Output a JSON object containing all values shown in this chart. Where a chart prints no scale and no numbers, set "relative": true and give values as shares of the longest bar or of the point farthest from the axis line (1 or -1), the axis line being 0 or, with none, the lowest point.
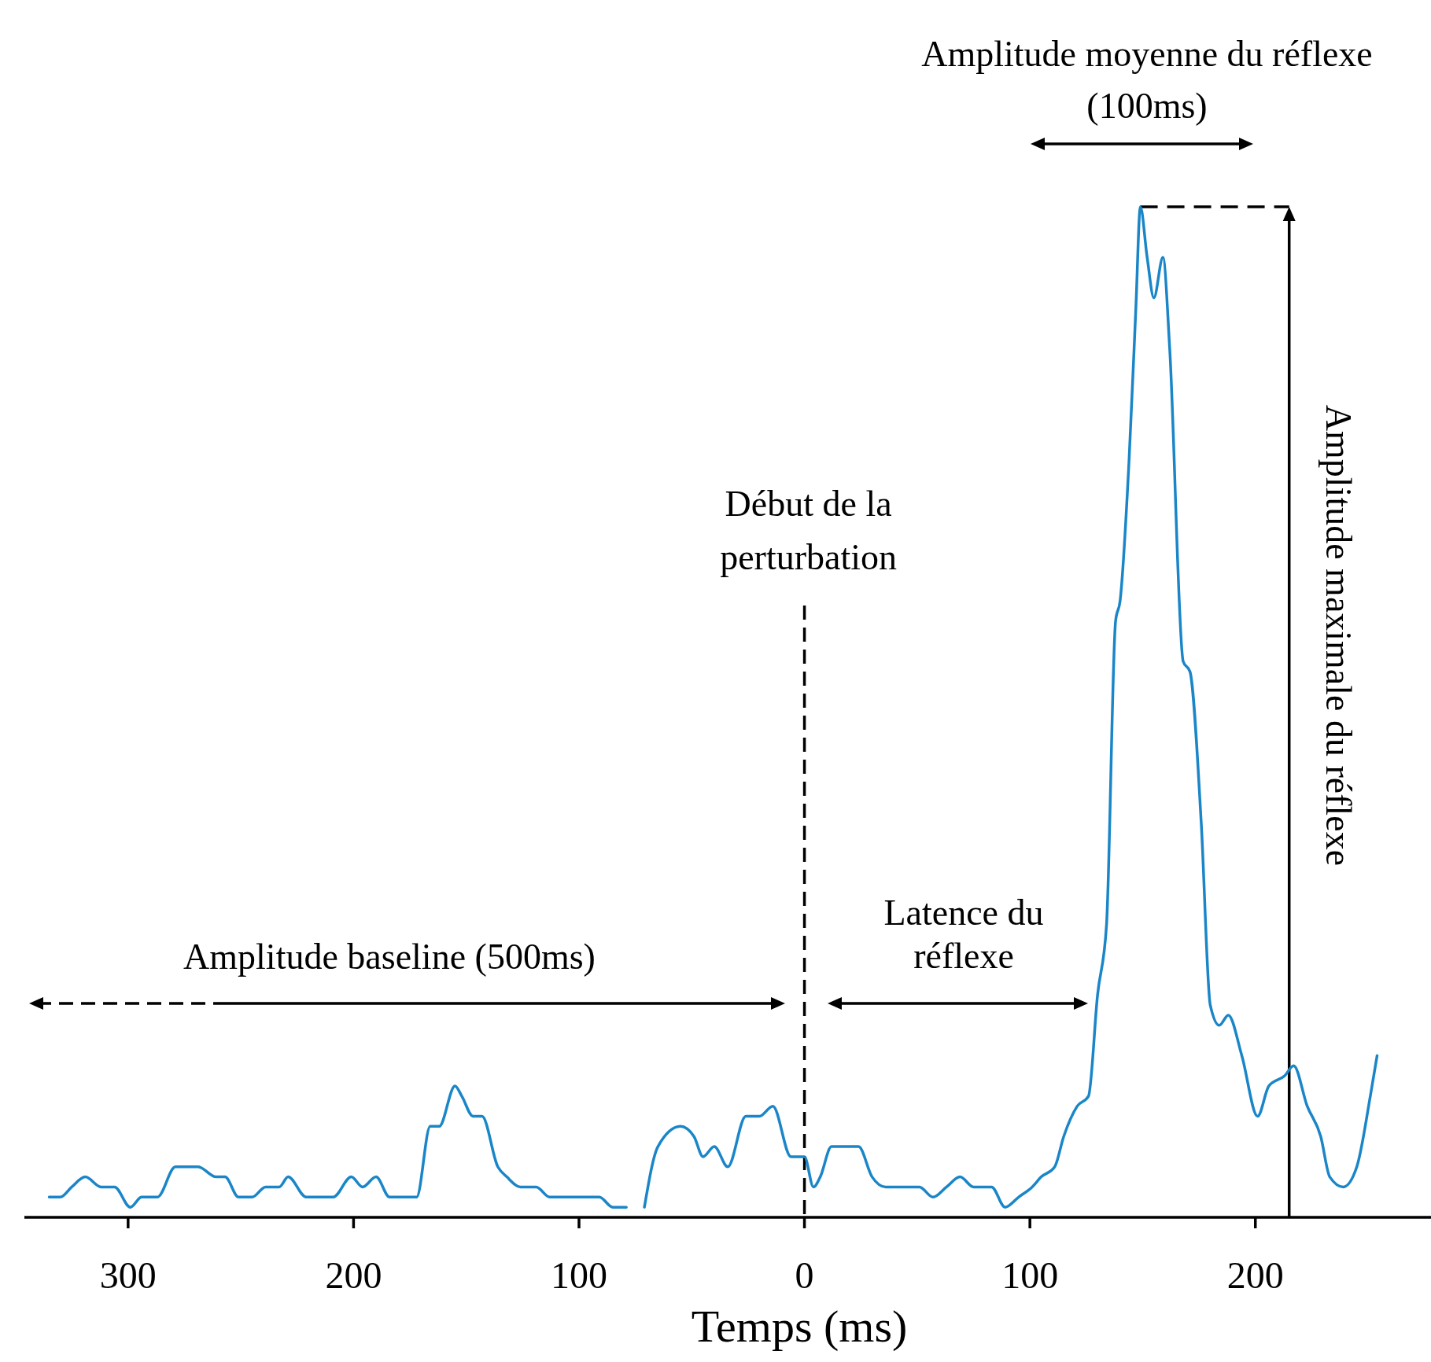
{
  "chart_data": {
    "type": "line",
    "relative": true,
    "xlabel": "Temps (ms)",
    "xlim": [
      -346,
      280
    ],
    "xticks": [
      {
        "value": -300,
        "label": "300"
      },
      {
        "value": -200,
        "label": "200"
      },
      {
        "value": -100,
        "label": "100"
      },
      0,
      100,
      200
    ],
    "grid": false,
    "marker": "none",
    "line_style": "solid",
    "x": [
      -335,
      -330,
      -325,
      -319,
      -312,
      -306,
      -299,
      -294,
      -287,
      -279,
      -273,
      -269,
      -261,
      -257,
      -251,
      -245,
      -239,
      -233,
      -229,
      -221,
      -215,
      -209,
      -201,
      -196,
      -190,
      -184,
      -176,
      -172,
      -166,
      -162,
      -155,
      -152,
      -147,
      -143,
      -136,
      -132,
      -126,
      -119,
      -113,
      -107,
      -99,
      -91,
      -85,
      -79,
      -75,
      -71,
      -65,
      -55,
      -49,
      -45,
      -40,
      -34,
      -26,
      -20,
      -14,
      -6,
      0,
      4,
      7,
      12,
      18,
      24,
      30,
      36,
      51,
      57,
      63,
      69,
      75,
      83,
      89,
      95,
      101,
      105,
      111,
      115,
      121,
      126,
      130,
      134,
      138,
      140,
      144,
      147,
      149,
      152,
      155,
      159,
      162,
      168,
      171,
      176,
      180,
      184,
      188,
      194,
      201,
      206,
      213,
      217,
      223,
      229,
      233,
      239,
      245,
      251,
      254
    ],
    "series": [
      {
        "color": "#1a86c8",
        "values": [
          0.02,
          0.02,
          0.03,
          0.04,
          0.03,
          0.03,
          0.01,
          0.02,
          0.02,
          0.05,
          0.05,
          0.05,
          0.04,
          0.04,
          0.02,
          0.02,
          0.03,
          0.03,
          0.04,
          0.02,
          0.02,
          0.02,
          0.04,
          0.03,
          0.04,
          0.02,
          0.02,
          0.02,
          0.09,
          0.09,
          0.13,
          0.12,
          0.1,
          0.1,
          0.05,
          0.04,
          0.03,
          0.03,
          0.02,
          0.02,
          0.02,
          0.02,
          0.01,
          0.01,
          null,
          0.01,
          0.07,
          0.09,
          0.08,
          0.06,
          0.07,
          0.05,
          0.1,
          0.1,
          0.11,
          0.06,
          0.06,
          0.03,
          0.04,
          0.07,
          0.07,
          0.07,
          0.04,
          0.03,
          0.03,
          0.02,
          0.03,
          0.04,
          0.03,
          0.03,
          0.01,
          0.02,
          0.03,
          0.04,
          0.05,
          0.08,
          0.11,
          0.12,
          0.22,
          0.29,
          0.59,
          0.61,
          0.75,
          0.9,
          1,
          0.95,
          0.91,
          0.95,
          0.86,
          0.55,
          0.54,
          0.39,
          0.21,
          0.19,
          0.2,
          0.16,
          0.1,
          0.13,
          0.14,
          0.15,
          0.11,
          0.08,
          0.04,
          0.03,
          0.05,
          0.12,
          0.16
        ]
      }
    ],
    "ref_lines": [
      {
        "axis": "x",
        "value": 0,
        "label": "Début de la\nperturbation",
        "line_style": "dashed",
        "color": "#000000"
      },
      {
        "axis": "x",
        "value": 215,
        "label": "Amplitude maximale du réflexe",
        "line_style": "solid",
        "color": "#000000"
      }
    ],
    "annotations": [
      "Amplitude moyenne du réflexe\n(100ms)",
      "Latence du\nréflexe",
      "Amplitude baseline (500ms)"
    ]
  }
}
